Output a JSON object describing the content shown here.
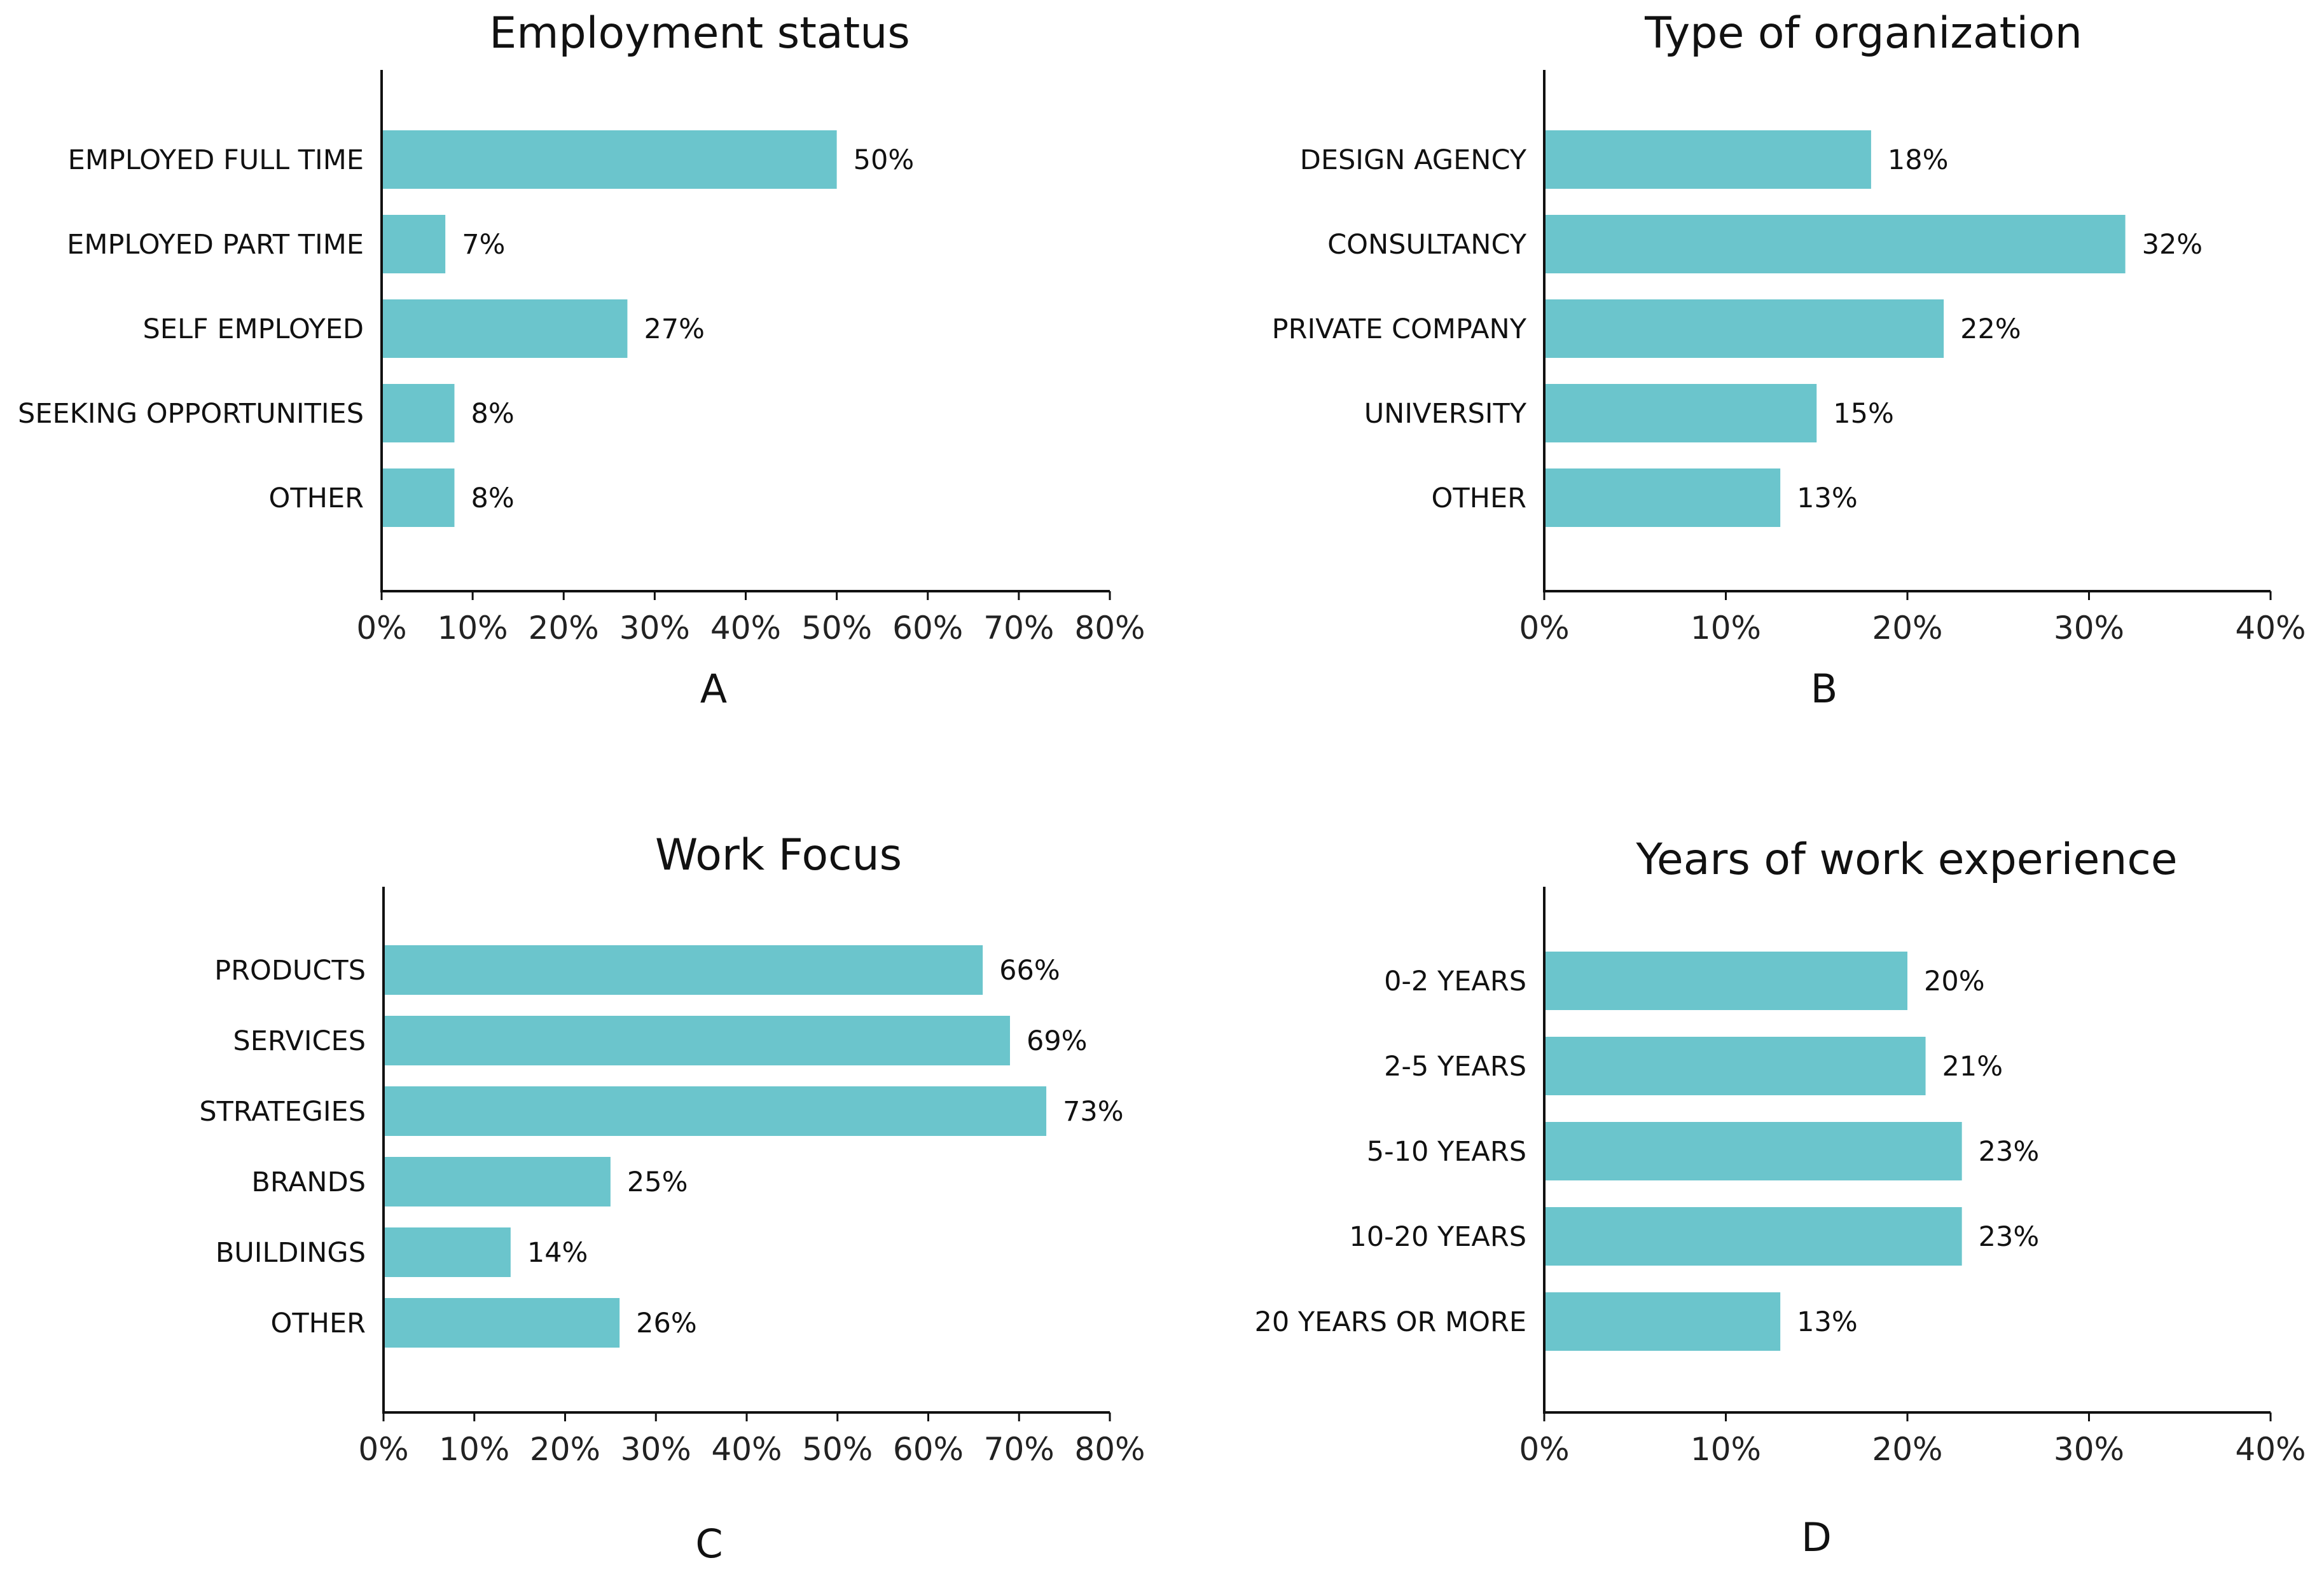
{
  "colors": {
    "bar": "#6BC5CC",
    "axis": "#111111",
    "text": "#111111"
  },
  "chart_data": [
    {
      "id": "A",
      "type": "bar",
      "orientation": "horizontal",
      "title": "Employment status",
      "panel_label": "A",
      "categories": [
        "EMPLOYED FULL TIME",
        "EMPLOYED PART TIME",
        "SELF EMPLOYED",
        "SEEKING OPPORTUNITIES",
        "OTHER"
      ],
      "values": [
        50,
        7,
        27,
        8,
        8
      ],
      "value_labels": [
        "50%",
        "7%",
        "27%",
        "8%",
        "8%"
      ],
      "xlim": [
        0,
        80
      ],
      "xticks": [
        "0%",
        "10%",
        "20%",
        "30%",
        "40%",
        "50%",
        "60%",
        "70%",
        "80%"
      ],
      "xlabel": "",
      "ylabel": "",
      "grid": false
    },
    {
      "id": "B",
      "type": "bar",
      "orientation": "horizontal",
      "title": "Type of organization",
      "panel_label": "B",
      "categories": [
        "DESIGN AGENCY",
        "CONSULTANCY",
        "PRIVATE COMPANY",
        "UNIVERSITY",
        "OTHER"
      ],
      "values": [
        18,
        32,
        22,
        15,
        13
      ],
      "value_labels": [
        "18%",
        "32%",
        "22%",
        "15%",
        "13%"
      ],
      "xlim": [
        0,
        40
      ],
      "xticks": [
        "0%",
        "10%",
        "20%",
        "30%",
        "40%"
      ],
      "xlabel": "",
      "ylabel": "",
      "grid": false
    },
    {
      "id": "C",
      "type": "bar",
      "orientation": "horizontal",
      "title": "Work Focus",
      "panel_label": "C",
      "categories": [
        "PRODUCTS",
        "SERVICES",
        "STRATEGIES",
        "BRANDS",
        "BUILDINGS",
        "OTHER"
      ],
      "values": [
        66,
        69,
        73,
        25,
        14,
        26
      ],
      "value_labels": [
        "66%",
        "69%",
        "73%",
        "25%",
        "14%",
        "26%"
      ],
      "xlim": [
        0,
        80
      ],
      "xticks": [
        "0%",
        "10%",
        "20%",
        "30%",
        "40%",
        "50%",
        "60%",
        "70%",
        "80%"
      ],
      "xlabel": "",
      "ylabel": "",
      "grid": false
    },
    {
      "id": "D",
      "type": "bar",
      "orientation": "horizontal",
      "title": "Years of work experience",
      "panel_label": "D",
      "categories": [
        "0-2 YEARS",
        "2-5 YEARS",
        "5-10 YEARS",
        "10-20 YEARS",
        "20 YEARS OR MORE"
      ],
      "values": [
        20,
        21,
        23,
        23,
        13
      ],
      "value_labels": [
        "20%",
        "21%",
        "23%",
        "23%",
        "13%"
      ],
      "xlim": [
        0,
        40
      ],
      "xticks": [
        "0%",
        "10%",
        "20%",
        "30%",
        "40%"
      ],
      "xlabel": "",
      "ylabel": "",
      "grid": false
    }
  ]
}
